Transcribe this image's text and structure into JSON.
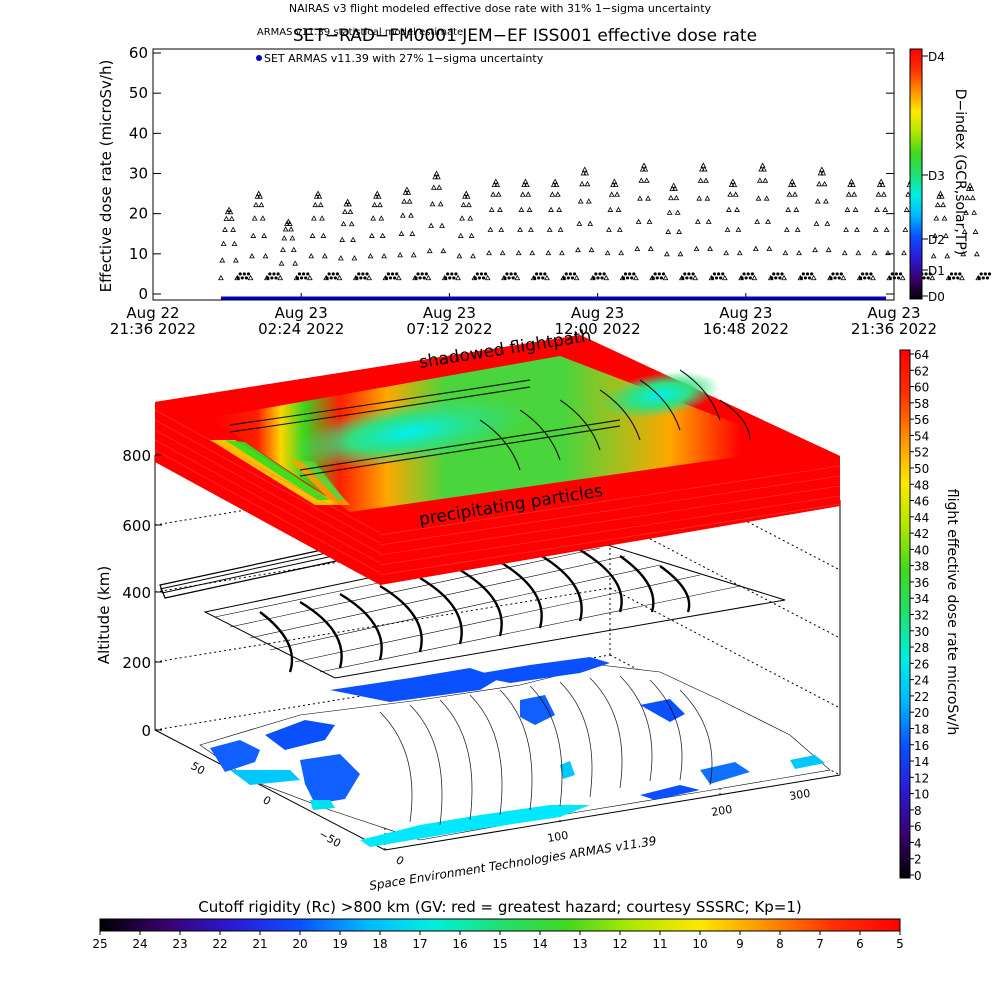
{
  "header": {
    "line1": "NAIRAS v3 flight modeled effective dose rate with 31% 1−sigma uncertainty",
    "line2": "ARMAS v11.39 statistical model estimate",
    "title": "SET−RAD−FM0001   JEM−EF ISS001 effective dose rate",
    "legend_armas": "SET ARMAS v11.39 with 27% 1−sigma uncertainty"
  },
  "chart_data": [
    {
      "type": "scatter",
      "title": "SET−RAD−FM0001   JEM−EF ISS001 effective dose rate",
      "ylabel": "Effective dose rate (microSv/h)",
      "ylim": [
        0,
        60
      ],
      "yticks": [
        "0",
        "10",
        "20",
        "30",
        "40",
        "50",
        "60"
      ],
      "xlim_hours": [
        0,
        24
      ],
      "xticks": [
        {
          "hours": 0.0,
          "l1": "Aug 22",
          "l2": "21:36 2022"
        },
        {
          "hours": 4.8,
          "l1": "Aug 23",
          "l2": "02:24 2022"
        },
        {
          "hours": 9.6,
          "l1": "Aug 23",
          "l2": "07:12 2022"
        },
        {
          "hours": 14.4,
          "l1": "Aug 23",
          "l2": "12:00 2022"
        },
        {
          "hours": 19.2,
          "l1": "Aug 23",
          "l2": "16:48 2022"
        },
        {
          "hours": 24.0,
          "l1": "Aug 23",
          "l2": "21:36 2022"
        }
      ],
      "orbit_start_hours": 2.2,
      "orbit_period_hours": 0.96,
      "orbit_peaks": [
        21,
        25,
        18,
        25,
        23,
        25,
        26,
        30,
        25,
        28,
        28,
        28,
        31,
        28,
        32,
        27,
        32,
        28,
        32,
        28,
        31,
        28,
        28,
        28,
        25,
        27
      ],
      "series": [
        {
          "name": "NAIRAS v3 flight modeled effective dose rate with 31% 1−sigma uncertainty",
          "marker": "triangle"
        },
        {
          "name": "ARMAS v11.39 statistical model estimate",
          "marker": "dot",
          "value": 4
        },
        {
          "name": "SET ARMAS v11.39 with 27% 1−sigma uncertainty",
          "marker": "dot",
          "color": "#0000cc",
          "value": 0
        }
      ],
      "colorbar": {
        "label": "D−index (GCR,solar,TP)",
        "ticks": [
          "D4",
          "D3",
          "D2",
          "D1",
          "D0"
        ]
      }
    },
    {
      "type": "heatmap",
      "ylabel": "Altitude (km)",
      "zticks": [
        "0",
        "200",
        "400",
        "600",
        "800"
      ],
      "lat_ticks": [
        "50",
        "0",
        "−50",
        "0"
      ],
      "lon_ticks": [
        "100",
        "200",
        "300"
      ],
      "annotations": [
        "shadowed flightpath",
        "precipitating particles"
      ],
      "credit": "Space Environment Technologies ARMAS v11.39",
      "colorbar": {
        "label": "flight effective dose rate microSv/h",
        "min": 0,
        "max": 64,
        "step": 2
      }
    }
  ],
  "bottom_colorbar": {
    "title": "Cutoff rigidity (Rc) >800 km (GV: red = greatest hazard; courtesy SSSRC; Kp=1)",
    "ticks": [
      "25",
      "24",
      "23",
      "22",
      "21",
      "20",
      "19",
      "18",
      "17",
      "16",
      "15",
      "14",
      "13",
      "12",
      "11",
      "10",
      "9",
      "8",
      "7",
      "6",
      "5"
    ]
  },
  "colors": {
    "rainbow": [
      "#000000",
      "#3a0070",
      "#2a1ad6",
      "#0a50ff",
      "#00b8ff",
      "#00f0e0",
      "#20e070",
      "#40d820",
      "#b0e800",
      "#ffe800",
      "#ff9000",
      "#ff3000",
      "#ff0000"
    ],
    "armas_blue": "#0000cc"
  }
}
